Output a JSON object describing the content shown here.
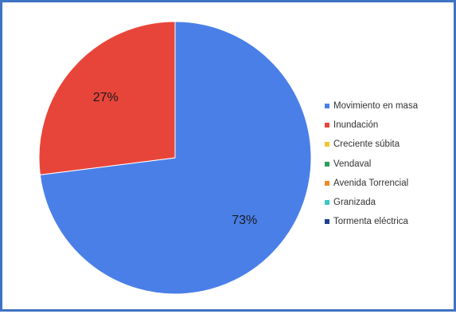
{
  "chart_data": {
    "type": "pie",
    "title": "",
    "slices": [
      {
        "name": "Movimiento en masa",
        "value": 73,
        "label": "73%",
        "color": "#4a7fe8"
      },
      {
        "name": "Inundación",
        "value": 27,
        "label": "27%",
        "color": "#e8453a"
      },
      {
        "name": "Creciente súbita",
        "value": 0,
        "label": "",
        "color": "#f4c430"
      },
      {
        "name": "Vendaval",
        "value": 0,
        "label": "",
        "color": "#2e9e5e"
      },
      {
        "name": "Avenida Torrencial",
        "value": 0,
        "label": "",
        "color": "#f08a24"
      },
      {
        "name": "Granizada",
        "value": 0,
        "label": "",
        "color": "#3cc6c6"
      },
      {
        "name": "Tormenta eléctrica",
        "value": 0,
        "label": "",
        "color": "#1f3f8f"
      }
    ],
    "legend_position": "right"
  }
}
